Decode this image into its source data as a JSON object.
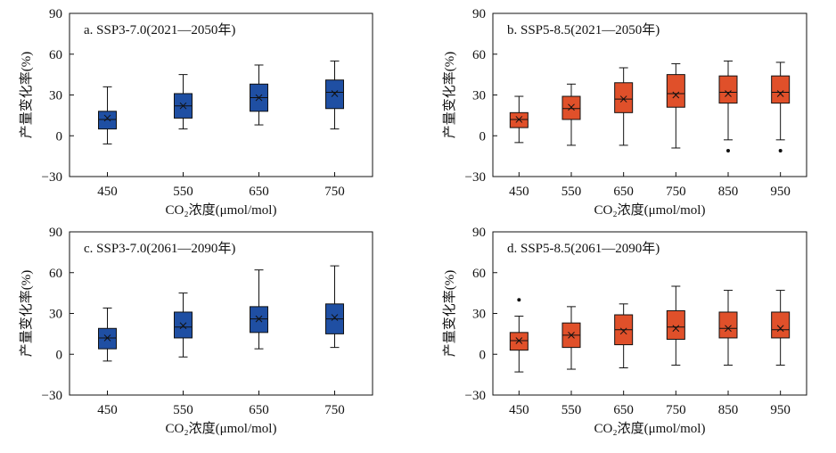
{
  "figure": {
    "colors": {
      "blue": "#1f4fa3",
      "orange": "#e0502a",
      "outline": "#111111"
    }
  },
  "chart_data": [
    {
      "type": "box",
      "title": "a. SSP3-7.0(2021—2050年)",
      "xlabel": "CO₂浓度(μmol/mol)",
      "ylabel": "产量变化率(%)",
      "ylim": [
        -30,
        90
      ],
      "yticks": [
        "90",
        "60",
        "30",
        "0",
        "−30"
      ],
      "categories": [
        "450",
        "550",
        "650",
        "750"
      ],
      "color": "#1f4fa3",
      "boxes": [
        {
          "min": -6,
          "q1": 5,
          "median": 12,
          "mean": 13,
          "q3": 18,
          "max": 36,
          "outliers": []
        },
        {
          "min": 5,
          "q1": 13,
          "median": 22,
          "mean": 22,
          "q3": 31,
          "max": 45,
          "outliers": []
        },
        {
          "min": 8,
          "q1": 18,
          "median": 28,
          "mean": 28,
          "q3": 38,
          "max": 52,
          "outliers": []
        },
        {
          "min": 5,
          "q1": 20,
          "median": 32,
          "mean": 31,
          "q3": 41,
          "max": 55,
          "outliers": []
        }
      ]
    },
    {
      "type": "box",
      "title": "b. SSP5-8.5(2021—2050年)",
      "xlabel": "CO₂浓度(μmol/mol)",
      "ylabel": "产量变化率(%)",
      "ylim": [
        -30,
        90
      ],
      "yticks": [
        "90",
        "60",
        "30",
        "0",
        "−30"
      ],
      "categories": [
        "450",
        "550",
        "650",
        "750",
        "850",
        "950"
      ],
      "color": "#e0502a",
      "boxes": [
        {
          "min": -5,
          "q1": 6,
          "median": 12,
          "mean": 12,
          "q3": 17,
          "max": 29,
          "outliers": []
        },
        {
          "min": -7,
          "q1": 12,
          "median": 20,
          "mean": 21,
          "q3": 29,
          "max": 38,
          "outliers": []
        },
        {
          "min": -7,
          "q1": 17,
          "median": 27,
          "mean": 27,
          "q3": 39,
          "max": 50,
          "outliers": []
        },
        {
          "min": -9,
          "q1": 21,
          "median": 31,
          "mean": 30,
          "q3": 45,
          "max": 53,
          "outliers": []
        },
        {
          "min": -3,
          "q1": 24,
          "median": 32,
          "mean": 31,
          "q3": 44,
          "max": 55,
          "outliers": [
            -11
          ]
        },
        {
          "min": -3,
          "q1": 24,
          "median": 32,
          "mean": 31,
          "q3": 44,
          "max": 54,
          "outliers": [
            -11
          ]
        }
      ]
    },
    {
      "type": "box",
      "title": "c. SSP3-7.0(2061—2090年)",
      "xlabel": "CO₂浓度(μmol/mol)",
      "ylabel": "产量变化率(%)",
      "ylim": [
        -30,
        90
      ],
      "yticks": [
        "90",
        "60",
        "30",
        "0",
        "−30"
      ],
      "categories": [
        "450",
        "550",
        "650",
        "750"
      ],
      "color": "#1f4fa3",
      "boxes": [
        {
          "min": -5,
          "q1": 4,
          "median": 12,
          "mean": 12,
          "q3": 19,
          "max": 34,
          "outliers": []
        },
        {
          "min": -2,
          "q1": 12,
          "median": 20,
          "mean": 21,
          "q3": 31,
          "max": 45,
          "outliers": []
        },
        {
          "min": 4,
          "q1": 16,
          "median": 26,
          "mean": 26,
          "q3": 35,
          "max": 62,
          "outliers": []
        },
        {
          "min": 5,
          "q1": 15,
          "median": 26,
          "mean": 27,
          "q3": 37,
          "max": 65,
          "outliers": []
        }
      ]
    },
    {
      "type": "box",
      "title": "d. SSP5-8.5(2061—2090年)",
      "xlabel": "CO₂浓度(μmol/mol)",
      "ylabel": "产量变化率(%)",
      "ylim": [
        -30,
        90
      ],
      "yticks": [
        "90",
        "60",
        "30",
        "0",
        "−30"
      ],
      "categories": [
        "450",
        "550",
        "650",
        "750",
        "850",
        "950"
      ],
      "color": "#e0502a",
      "boxes": [
        {
          "min": -13,
          "q1": 3,
          "median": 10,
          "mean": 10,
          "q3": 16,
          "max": 28,
          "outliers": [
            40
          ]
        },
        {
          "min": -11,
          "q1": 5,
          "median": 14,
          "mean": 14,
          "q3": 23,
          "max": 35,
          "outliers": []
        },
        {
          "min": -10,
          "q1": 7,
          "median": 18,
          "mean": 17,
          "q3": 29,
          "max": 37,
          "outliers": []
        },
        {
          "min": -8,
          "q1": 11,
          "median": 20,
          "mean": 19,
          "q3": 32,
          "max": 50,
          "outliers": []
        },
        {
          "min": -8,
          "q1": 12,
          "median": 19,
          "mean": 19,
          "q3": 31,
          "max": 47,
          "outliers": []
        },
        {
          "min": -8,
          "q1": 12,
          "median": 18,
          "mean": 19,
          "q3": 31,
          "max": 47,
          "outliers": []
        }
      ]
    }
  ]
}
